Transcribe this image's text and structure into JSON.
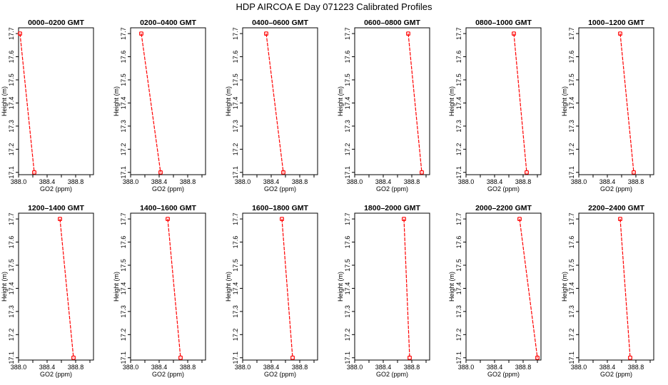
{
  "chart_data": {
    "type": "line",
    "title": "HDP  AIRCOA E  Day 071223  Calibrated Profiles",
    "xlabel": "GO2 (ppm)",
    "ylabel": "Height (m)",
    "xlim": [
      388.0,
      389.05
    ],
    "ylim": [
      17.09,
      17.725
    ],
    "x_ticks": [
      "388.0",
      "388.4",
      "388.8"
    ],
    "x_tick_values": [
      388.0,
      388.4,
      388.8
    ],
    "x_minor_tick_values": [
      388.2,
      388.6,
      389.0
    ],
    "y_ticks": [
      "17.1",
      "17.2",
      "17.3",
      "17.4",
      "17.5",
      "17.6",
      "17.7"
    ],
    "y_tick_values": [
      17.1,
      17.2,
      17.3,
      17.4,
      17.5,
      17.6,
      17.7
    ],
    "line_color": "#ff0000",
    "layout": "2 rows x 6 columns",
    "panels": [
      {
        "title": "0000–0200 GMT",
        "points": [
          {
            "x": 388.02,
            "y": 17.7
          },
          {
            "x": 388.22,
            "y": 17.1
          }
        ]
      },
      {
        "title": "0200–0400 GMT",
        "points": [
          {
            "x": 388.15,
            "y": 17.7
          },
          {
            "x": 388.42,
            "y": 17.1
          }
        ]
      },
      {
        "title": "0400–0600 GMT",
        "points": [
          {
            "x": 388.33,
            "y": 17.7
          },
          {
            "x": 388.57,
            "y": 17.1
          }
        ]
      },
      {
        "title": "0600–0800 GMT",
        "points": [
          {
            "x": 388.75,
            "y": 17.7
          },
          {
            "x": 388.94,
            "y": 17.1
          }
        ]
      },
      {
        "title": "0800–1000 GMT",
        "points": [
          {
            "x": 388.67,
            "y": 17.7
          },
          {
            "x": 388.85,
            "y": 17.1
          }
        ]
      },
      {
        "title": "1000–1200 GMT",
        "points": [
          {
            "x": 388.58,
            "y": 17.7
          },
          {
            "x": 388.77,
            "y": 17.1
          }
        ]
      },
      {
        "title": "1200–1400 GMT",
        "points": [
          {
            "x": 388.58,
            "y": 17.7
          },
          {
            "x": 388.77,
            "y": 17.1
          }
        ]
      },
      {
        "title": "1400–1600 GMT",
        "points": [
          {
            "x": 388.52,
            "y": 17.7
          },
          {
            "x": 388.7,
            "y": 17.1
          }
        ]
      },
      {
        "title": "1600–1800 GMT",
        "points": [
          {
            "x": 388.55,
            "y": 17.7
          },
          {
            "x": 388.7,
            "y": 17.1
          }
        ]
      },
      {
        "title": "1800–2000 GMT",
        "points": [
          {
            "x": 388.69,
            "y": 17.7
          },
          {
            "x": 388.77,
            "y": 17.1
          }
        ]
      },
      {
        "title": "2000–2200 GMT",
        "points": [
          {
            "x": 388.75,
            "y": 17.7
          },
          {
            "x": 389.0,
            "y": 17.1
          }
        ]
      },
      {
        "title": "2200–2400 GMT",
        "points": [
          {
            "x": 388.58,
            "y": 17.7
          },
          {
            "x": 388.72,
            "y": 17.1
          }
        ]
      }
    ]
  }
}
